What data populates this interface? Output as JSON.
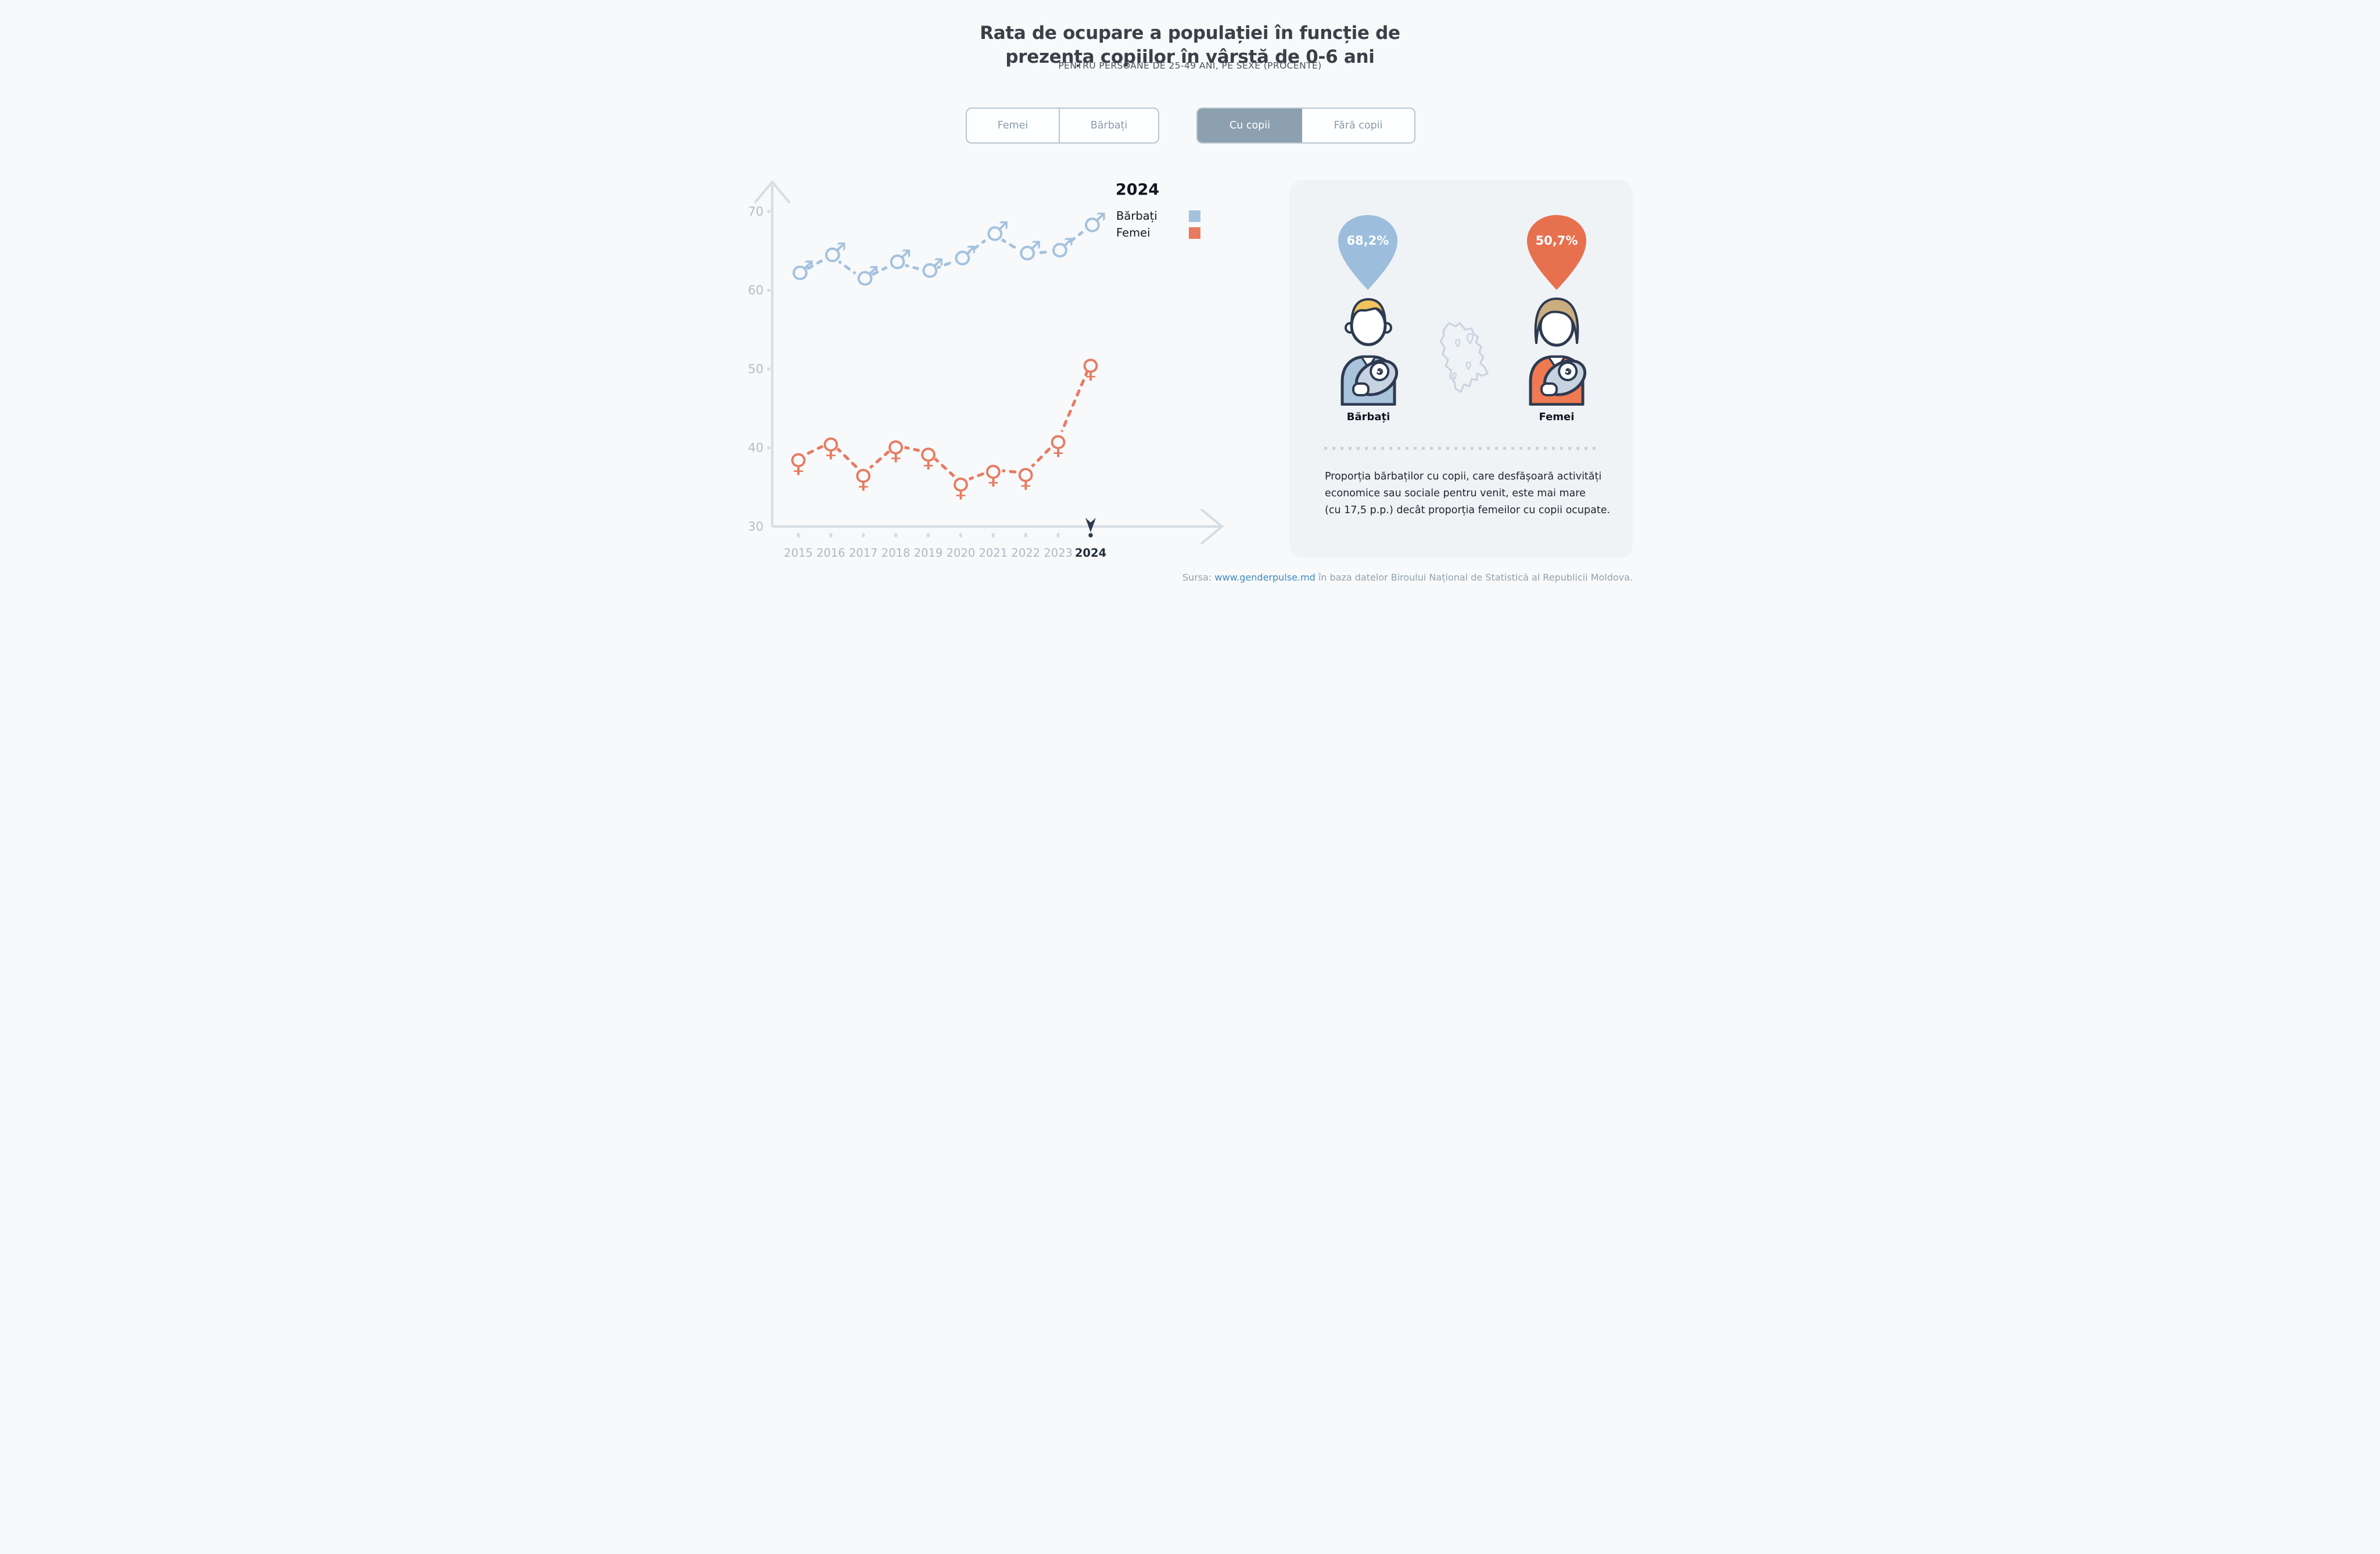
{
  "header": {
    "title_line1": "Rata de ocupare a populației în funcție de",
    "title_line2": "prezența copiilor în vârstă de 0-6 ani",
    "subtitle": "PENTRU PERSOANE DE 25-49 ANI, PE SEXE (PROCENTE)"
  },
  "controls": {
    "sex_options": [
      {
        "label": "Femei",
        "selected": false
      },
      {
        "label": "Bărbați",
        "selected": false
      }
    ],
    "children_options": [
      {
        "label": "Cu copii",
        "selected": true
      },
      {
        "label": "Fără copii",
        "selected": false
      }
    ]
  },
  "legend": {
    "year": "2024",
    "entries": [
      {
        "label": "Bărbați",
        "color": "#a4c2de"
      },
      {
        "label": "Femei",
        "color": "#e87a60"
      }
    ]
  },
  "chart_data": {
    "type": "line",
    "x": [
      2015,
      2016,
      2017,
      2018,
      2019,
      2020,
      2021,
      2022,
      2023,
      2024
    ],
    "series": [
      {
        "name": "Bărbați",
        "marker": "male",
        "color": "#a4c2de",
        "values": [
          62.1,
          64.4,
          61.4,
          63.5,
          62.4,
          64.0,
          67.1,
          64.6,
          65.0,
          68.2
        ]
      },
      {
        "name": "Femei",
        "marker": "female",
        "color": "#e87a60",
        "values": [
          38.7,
          40.7,
          36.7,
          40.3,
          39.4,
          35.6,
          37.2,
          36.8,
          41.0,
          50.7
        ]
      }
    ],
    "ylim": [
      30,
      73
    ],
    "yticks": [
      30,
      40,
      50,
      60,
      70
    ],
    "grid": false,
    "line_style": "dashed",
    "selected_x": 2024,
    "legend_position": "inside-top-right"
  },
  "panel": {
    "badges": [
      {
        "value": "68,2%",
        "color": "#9cbddc"
      },
      {
        "value": "50,7%",
        "color": "#e7704e"
      }
    ],
    "figures": [
      {
        "label": "Bărbați"
      },
      {
        "label": "Femei"
      }
    ],
    "note_lines": [
      "Proporția bărbaților cu copii, care desfășoară activități",
      "economice sau sociale pentru venit, este mai mare",
      "(cu 17,5 p.p.) decât proporția femeilor cu copii ocupate."
    ]
  },
  "source": {
    "prefix": "Sursa: ",
    "link_text": "www.genderpulse.md",
    "suffix": " în baza datelor Biroului Național de Statistică al Republicii Moldova."
  },
  "colors": {
    "page_bg": "#f7f9fa",
    "panel_bg": "#f0f3f6",
    "axis": "#d5dde4",
    "tick_label": "#b2bdc8",
    "year_label": "#aeb9c4",
    "selected_year_label": "#232e3a",
    "pin": "#2d3a50"
  }
}
